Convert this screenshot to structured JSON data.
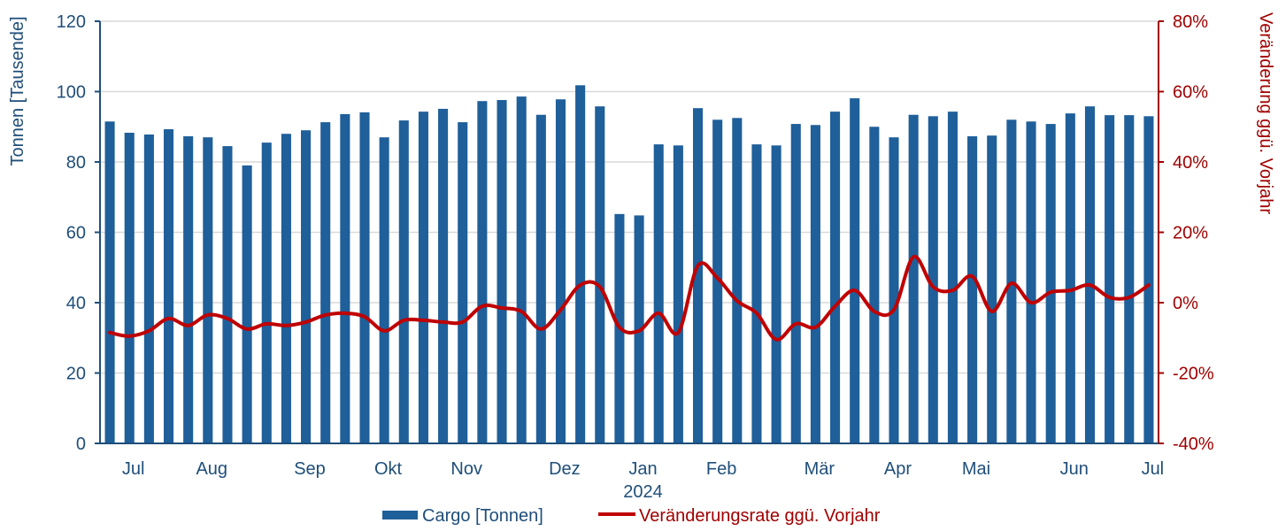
{
  "chart_data": {
    "type": "bar",
    "y_left_label": "Tonnen [Tausende]",
    "y_right_label": "Veränderung ggü. Vorjahr",
    "y_left_range": [
      0,
      120
    ],
    "y_left_ticks": [
      "0",
      "20",
      "40",
      "60",
      "80",
      "100",
      "120"
    ],
    "y_right_range": [
      -40,
      80
    ],
    "y_right_ticks": [
      "-40%",
      "-20%",
      "0%",
      "20%",
      "40%",
      "60%",
      "80%"
    ],
    "grid": "horizontal",
    "legend_position": "bottom",
    "colors": {
      "bars": "#1f5f9a",
      "line": "#c00000",
      "grid": "#d9d9d9",
      "left_axis": "#1f4e79",
      "right_axis": "#a00000"
    },
    "x_labels": [
      {
        "text": "Jul",
        "index": 1
      },
      {
        "text": "Aug",
        "index": 5
      },
      {
        "text": "Sep",
        "index": 10
      },
      {
        "text": "Okt",
        "index": 14
      },
      {
        "text": "Nov",
        "index": 18
      },
      {
        "text": "Dez",
        "index": 23
      },
      {
        "text": "Jan",
        "index": 27
      },
      {
        "text": "2024",
        "index": 27,
        "line": 2
      },
      {
        "text": "Feb",
        "index": 31
      },
      {
        "text": "Mär",
        "index": 36
      },
      {
        "text": "Apr",
        "index": 40
      },
      {
        "text": "Mai",
        "index": 44
      },
      {
        "text": "Jun",
        "index": 49
      },
      {
        "text": "Jul",
        "index": 53
      }
    ],
    "series": [
      {
        "name": "Cargo [Tonnen]",
        "type": "bar",
        "axis": "left",
        "values": [
          91.5,
          88.3,
          87.8,
          89.3,
          87.3,
          87.0,
          84.5,
          79.0,
          85.5,
          88.0,
          89.0,
          91.3,
          93.6,
          94.1,
          87.0,
          91.8,
          94.3,
          95.1,
          91.3,
          97.3,
          97.6,
          98.6,
          93.4,
          97.8,
          101.8,
          95.8,
          65.2,
          64.8,
          85.0,
          84.7,
          95.3,
          92.0,
          92.5,
          85.0,
          84.7,
          90.8,
          90.5,
          94.3,
          98.1,
          90.0,
          87.0,
          93.4,
          93.0,
          94.3,
          87.3,
          87.5,
          92.0,
          91.5,
          90.8,
          93.8,
          95.8,
          93.3,
          93.3,
          93.0
        ]
      },
      {
        "name": "Veränderungsrate ggü. Vorjahr",
        "type": "line",
        "axis": "right",
        "values": [
          -8.5,
          -9.5,
          -8.0,
          -4.5,
          -6.5,
          -3.5,
          -4.5,
          -7.5,
          -6.0,
          -6.5,
          -5.5,
          -3.5,
          -3.0,
          -4.0,
          -8.0,
          -5.0,
          -5.0,
          -5.5,
          -5.5,
          -1.0,
          -1.5,
          -2.5,
          -7.5,
          -2.0,
          5.0,
          4.5,
          -7.0,
          -8.0,
          -3.0,
          -8.5,
          10.5,
          7.0,
          0.5,
          -3.0,
          -10.5,
          -6.0,
          -7.0,
          -1.0,
          3.5,
          -2.5,
          -2.0,
          13.0,
          4.5,
          3.5,
          7.5,
          -2.5,
          5.5,
          0.0,
          3.0,
          3.5,
          5.0,
          1.5,
          1.5,
          5.0
        ]
      }
    ]
  }
}
